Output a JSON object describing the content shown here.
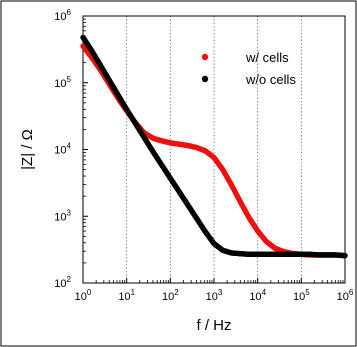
{
  "chart_data": {
    "type": "scatter",
    "xlabel": "f / Hz",
    "ylabel": "|Z| / Ω",
    "xscale": "log",
    "yscale": "log",
    "xlim": [
      1,
      1000000
    ],
    "ylim": [
      100,
      1000000
    ],
    "x_ticks": [
      {
        "value": 1,
        "label_base": "10",
        "label_exp": "0"
      },
      {
        "value": 10,
        "label_base": "10",
        "label_exp": "1"
      },
      {
        "value": 100,
        "label_base": "10",
        "label_exp": "2"
      },
      {
        "value": 1000,
        "label_base": "10",
        "label_exp": "3"
      },
      {
        "value": 10000,
        "label_base": "10",
        "label_exp": "4"
      },
      {
        "value": 100000,
        "label_base": "10",
        "label_exp": "5"
      },
      {
        "value": 1000000,
        "label_base": "10",
        "label_exp": "6"
      }
    ],
    "y_ticks": [
      {
        "value": 100,
        "label_base": "10",
        "label_exp": "2"
      },
      {
        "value": 1000,
        "label_base": "10",
        "label_exp": "3"
      },
      {
        "value": 10000,
        "label_base": "10",
        "label_exp": "4"
      },
      {
        "value": 100000,
        "label_base": "10",
        "label_exp": "5"
      },
      {
        "value": 1000000,
        "label_base": "10",
        "label_exp": "6"
      }
    ],
    "grid": "vertical dotted at decades",
    "legend_position": "top-right",
    "series": [
      {
        "name": "w/ cells",
        "color": "#ee1111",
        "log_x": [
          0,
          0.2,
          0.4,
          0.6,
          0.8,
          1,
          1.2,
          1.4,
          1.6,
          1.8,
          2,
          2.2,
          2.4,
          2.6,
          2.8,
          3,
          3.2,
          3.4,
          3.6,
          3.8,
          4,
          4.2,
          4.4,
          4.6,
          4.8,
          5,
          5.2,
          5.4,
          5.6,
          5.8,
          6
        ],
        "log_y": [
          5.55,
          5.38,
          5.19,
          4.98,
          4.77,
          4.58,
          4.4,
          4.25,
          4.17,
          4.13,
          4.1,
          4.08,
          4.06,
          4.03,
          3.98,
          3.88,
          3.7,
          3.47,
          3.22,
          2.98,
          2.78,
          2.62,
          2.52,
          2.47,
          2.44,
          2.43,
          2.42,
          2.42,
          2.42,
          2.42,
          2.41
        ]
      },
      {
        "name": "w/o cells",
        "color": "#000000",
        "log_x": [
          0,
          0.2,
          0.4,
          0.6,
          0.8,
          1,
          1.2,
          1.4,
          1.6,
          1.8,
          2,
          2.2,
          2.4,
          2.6,
          2.8,
          3,
          3.2,
          3.4,
          3.6,
          3.8,
          4,
          4.2,
          4.4,
          4.6,
          4.8,
          5,
          5.2,
          5.4,
          5.6,
          5.8,
          6
        ],
        "log_y": [
          5.68,
          5.48,
          5.26,
          5.04,
          4.82,
          4.6,
          4.39,
          4.18,
          3.97,
          3.77,
          3.57,
          3.37,
          3.17,
          2.97,
          2.77,
          2.59,
          2.49,
          2.45,
          2.44,
          2.43,
          2.43,
          2.43,
          2.43,
          2.43,
          2.43,
          2.43,
          2.43,
          2.42,
          2.42,
          2.42,
          2.41
        ]
      }
    ]
  }
}
